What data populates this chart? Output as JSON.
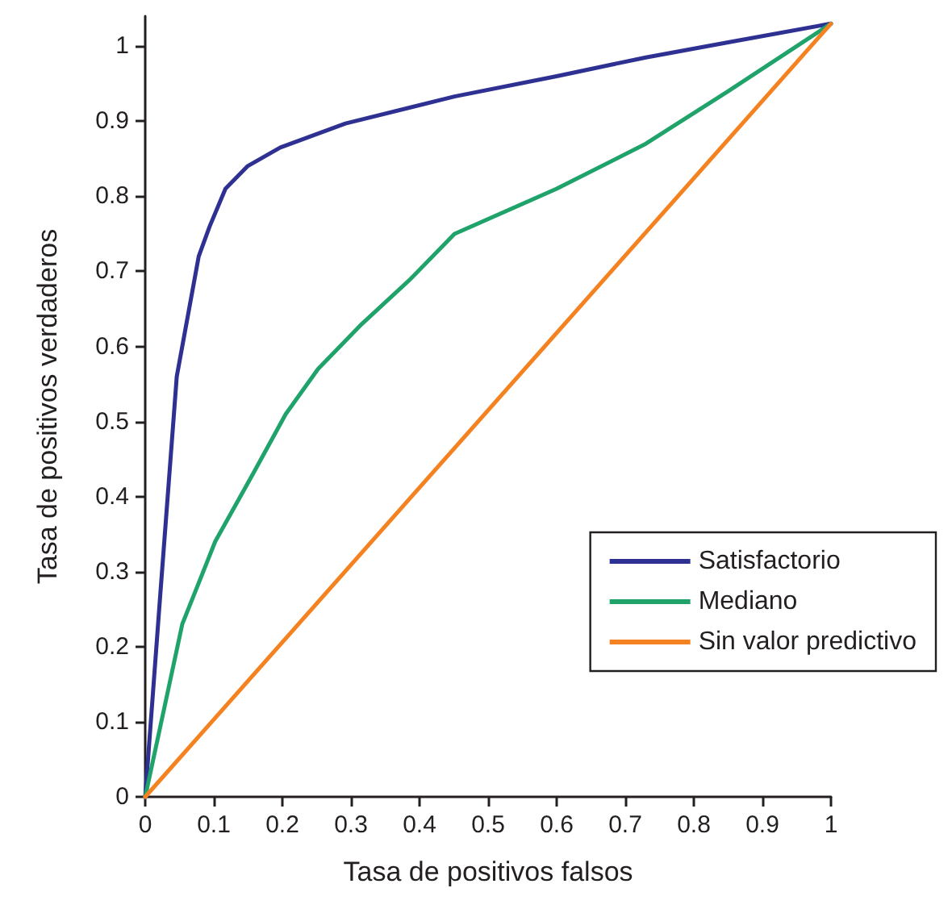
{
  "chart_data": {
    "type": "line",
    "xlabel": "Tasa de positivos falsos",
    "ylabel": "Tasa de positivos verdaderos",
    "xlim": [
      0,
      1
    ],
    "xticks": [
      0,
      0.1,
      0.2,
      0.3,
      0.4,
      0.5,
      0.6,
      0.7,
      0.8,
      0.9,
      1
    ],
    "ylim": [
      0,
      1.04
    ],
    "yticks": [
      0,
      0.1,
      0.2,
      0.3,
      0.4,
      0.5,
      0.6,
      0.7,
      0.8,
      0.9,
      1
    ],
    "grid": false,
    "legend": "bottom right",
    "marker": "none",
    "line_style": "solid",
    "series": [
      {
        "name": "Satisfactorio",
        "color": "#2e3192",
        "x": [
          0,
          0.022,
          0.046,
          0.066,
          0.078,
          0.094,
          0.117,
          0.149,
          0.197,
          0.292,
          0.451,
          0.6,
          0.73,
          0.85,
          1
        ],
        "values": [
          0,
          0.27,
          0.56,
          0.66,
          0.72,
          0.76,
          0.81,
          0.84,
          0.865,
          0.897,
          0.933,
          0.96,
          0.985,
          1.005,
          1.03
        ]
      },
      {
        "name": "Mediano",
        "color": "#1fa36b",
        "x": [
          0,
          0.054,
          0.102,
          0.157,
          0.205,
          0.252,
          0.316,
          0.387,
          0.451,
          0.6,
          0.73,
          0.85,
          1
        ],
        "values": [
          0,
          0.23,
          0.34,
          0.43,
          0.51,
          0.57,
          0.63,
          0.69,
          0.75,
          0.81,
          0.87,
          0.94,
          1.03
        ]
      },
      {
        "name": "Sin valor predictivo",
        "color": "#f58220",
        "x": [
          0,
          1
        ],
        "values": [
          0,
          1.03
        ]
      }
    ]
  }
}
